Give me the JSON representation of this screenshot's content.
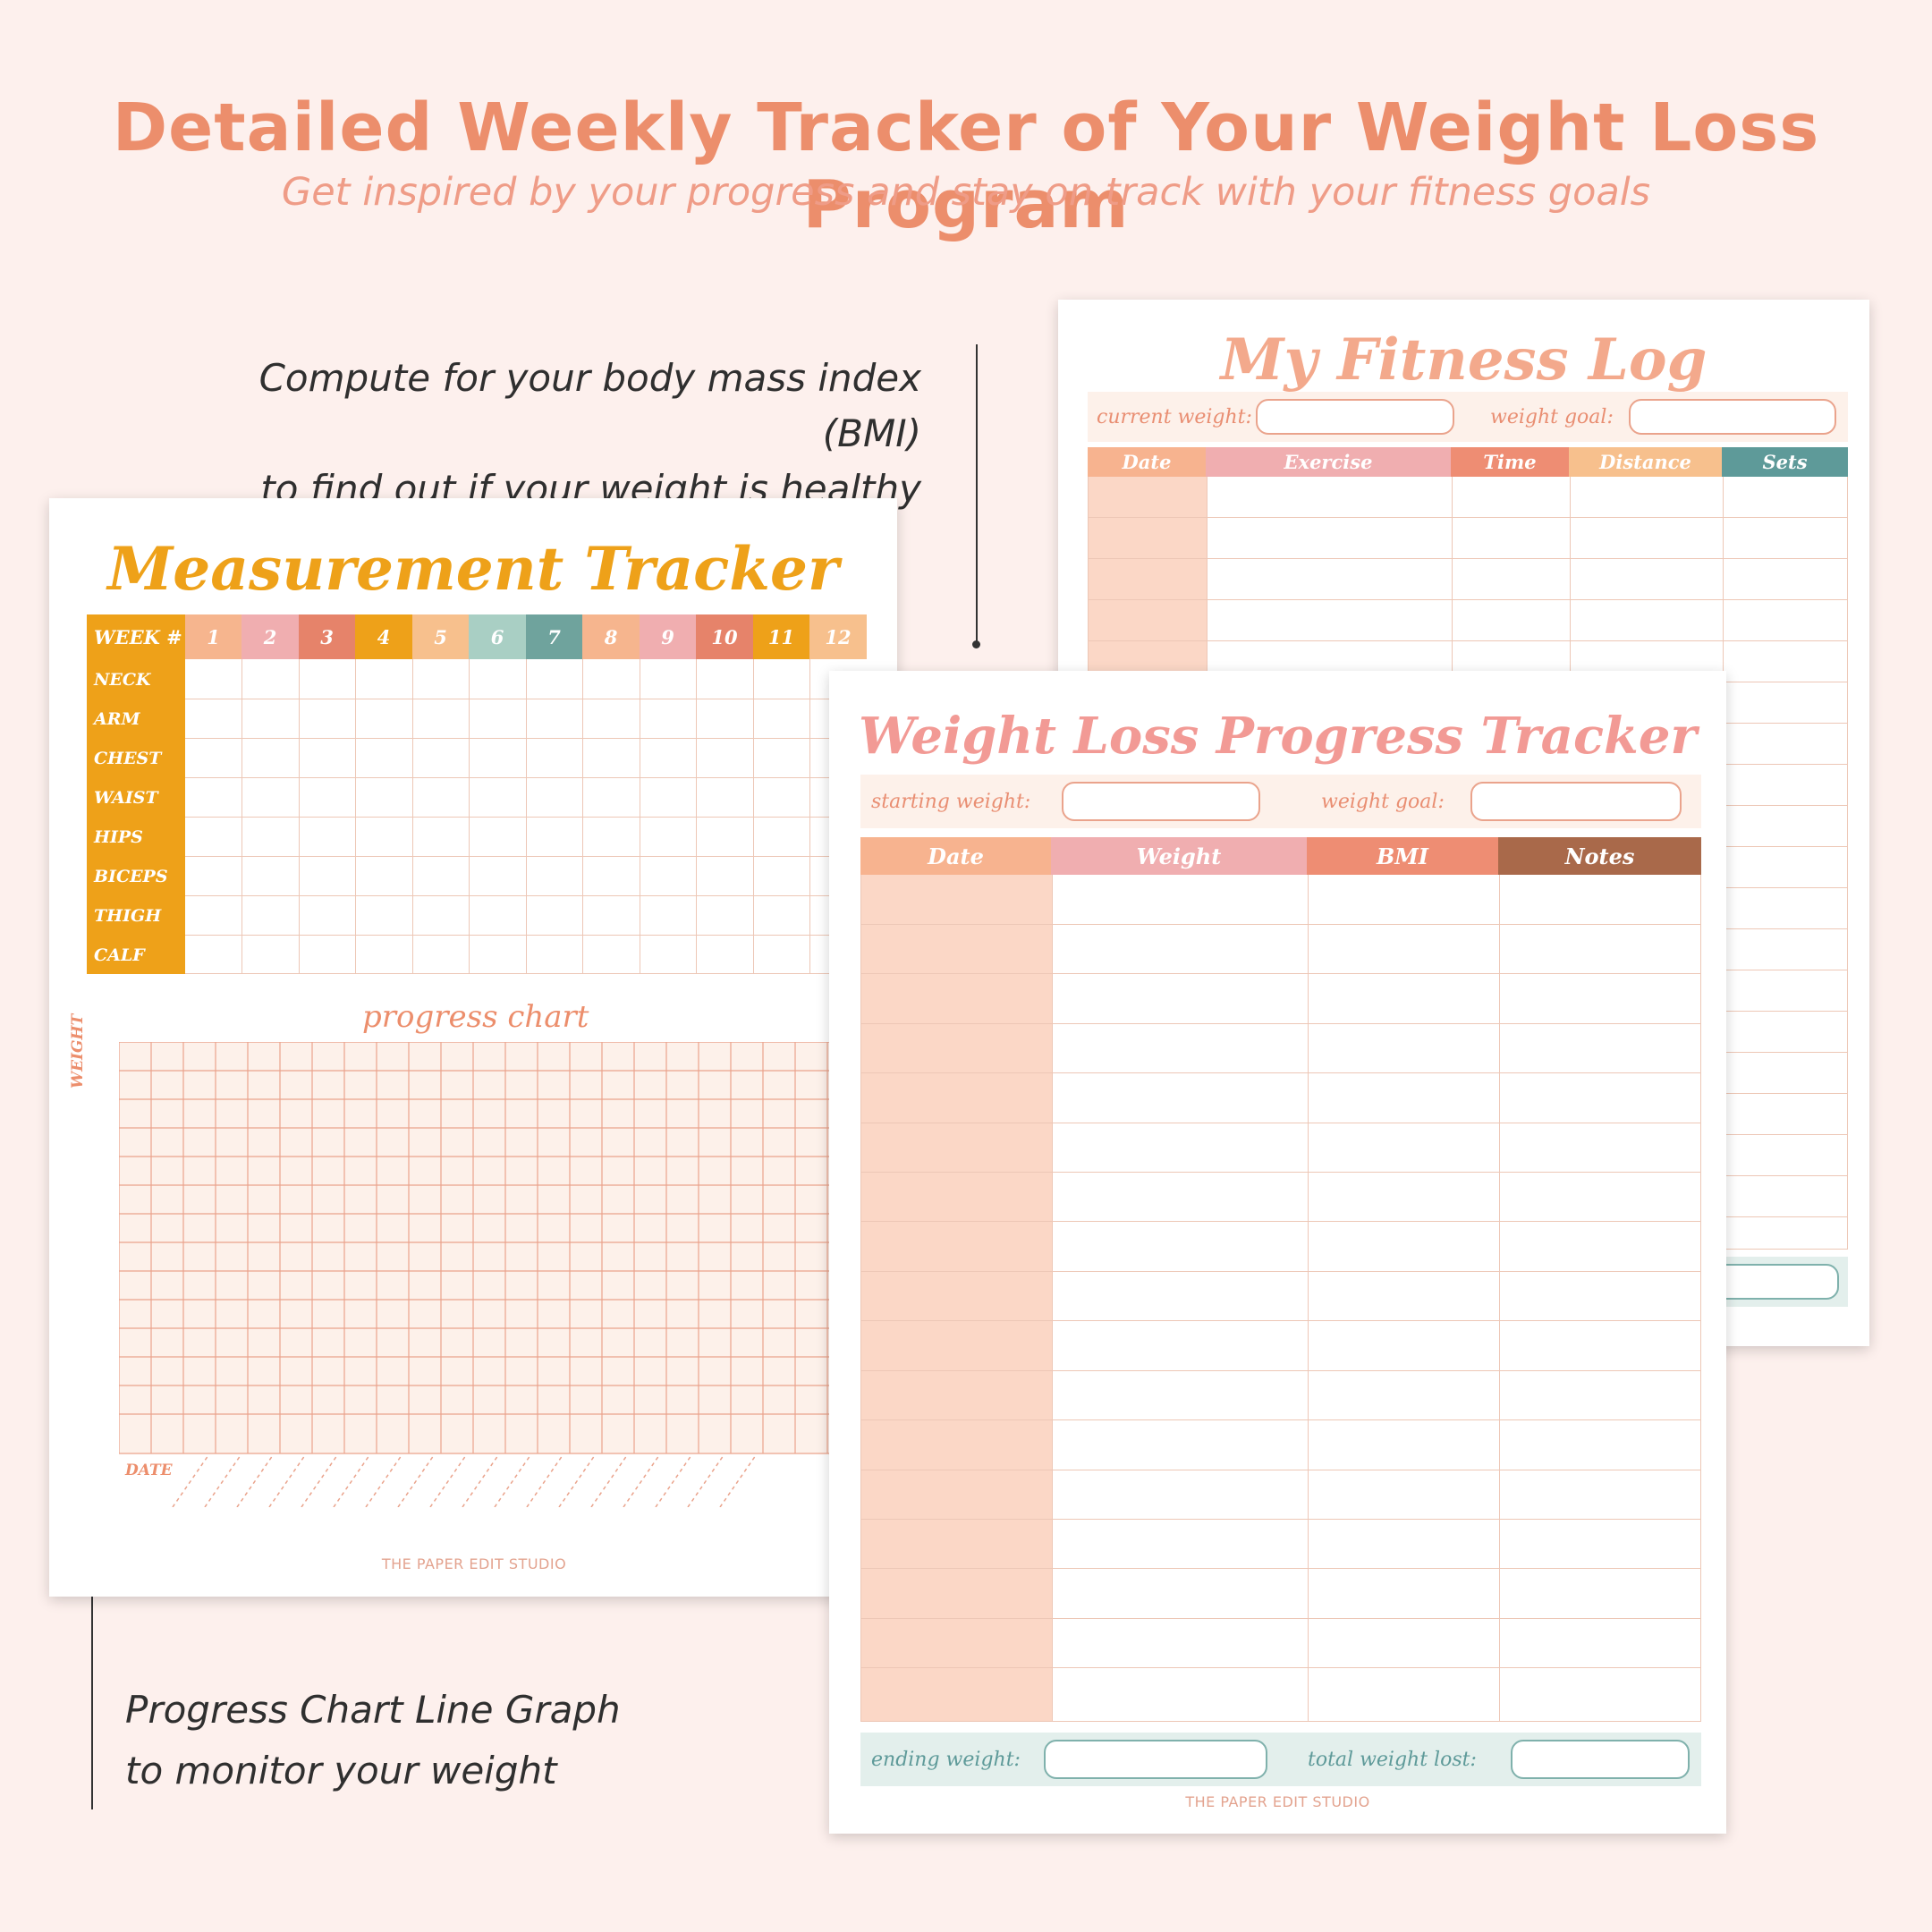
{
  "header": {
    "title": "Detailed Weekly Tracker of Your Weight Loss Program",
    "subtitle": "Get inspired by your progress and stay on track with your fitness goals"
  },
  "callouts": {
    "bmi_line1": "Compute for your body mass index (BMI)",
    "bmi_line2": "to find out if your weight is healthy",
    "chart_line1": "Progress Chart Line Graph",
    "chart_line2": "to monitor your weight"
  },
  "fitness_log": {
    "title": "My Fitness Log",
    "current_weight_label": "current weight:",
    "weight_goal_label": "weight goal:",
    "columns": [
      "Date",
      "Exercise",
      "Time",
      "Distance",
      "Sets"
    ]
  },
  "measurement_tracker": {
    "title": "Measurement Tracker",
    "week_label": "WEEK #",
    "weeks": [
      "1",
      "2",
      "3",
      "4",
      "5",
      "6",
      "7",
      "8",
      "9",
      "10",
      "11",
      "12"
    ],
    "rows": [
      "NECK",
      "ARM",
      "CHEST",
      "WAIST",
      "HIPS",
      "BICEPS",
      "THIGH",
      "CALF"
    ],
    "chart_title": "progress chart",
    "y_label": "WEIGHT",
    "x_label": "DATE",
    "studio": "THE PAPER EDIT STUDIO"
  },
  "weight_loss_tracker": {
    "title": "Weight Loss Progress Tracker",
    "starting_weight_label": "starting weight:",
    "weight_goal_label": "weight goal:",
    "columns": [
      "Date",
      "Weight",
      "BMI",
      "Notes"
    ],
    "ending_weight_label": "ending weight:",
    "total_lost_label": "total weight lost:",
    "studio": "THE PAPER EDIT STUDIO"
  },
  "colors": {
    "accent_orange": "#ec8e6c",
    "mustard": "#eea119",
    "peach": "#f6b58e",
    "pink": "#f0aeb0",
    "coral": "#ee8d73",
    "brown": "#a9694a",
    "teal": "#5e9a99",
    "sage": "#a9cfc4"
  }
}
